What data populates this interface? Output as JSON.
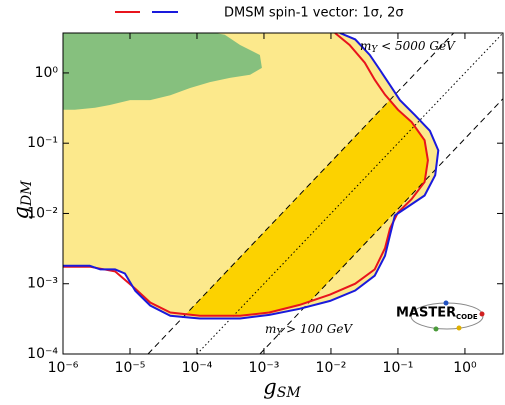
{
  "chart_data": {
    "type": "contour",
    "legend_label": "DMSM spin-1 vector: 1σ, 2σ",
    "x_label": {
      "base": "g",
      "sub": "SM"
    },
    "y_label": {
      "base": "g",
      "sub": "DM"
    },
    "log_x": true,
    "log_y": true,
    "xlim": [
      1e-06,
      3.7
    ],
    "ylim": [
      0.0001,
      3.7
    ],
    "xticks": [
      {
        "value": 1e-06,
        "label": "10⁻⁶"
      },
      {
        "value": 1e-05,
        "label": "10⁻⁵"
      },
      {
        "value": 0.0001,
        "label": "10⁻⁴"
      },
      {
        "value": 0.001,
        "label": "10⁻³"
      },
      {
        "value": 0.01,
        "label": "10⁻²"
      },
      {
        "value": 0.1,
        "label": "10⁻¹"
      },
      {
        "value": 1,
        "label": "10⁰"
      }
    ],
    "yticks": [
      {
        "value": 0.0001,
        "label": "10⁻⁴"
      },
      {
        "value": 0.001,
        "label": "10⁻³"
      },
      {
        "value": 0.01,
        "label": "10⁻²"
      },
      {
        "value": 0.1,
        "label": "10⁻¹"
      },
      {
        "value": 1,
        "label": "10⁰"
      }
    ],
    "series": [
      {
        "color": "#e8141c",
        "fill": "#fcd200",
        "x": [
          1e-06,
          2.5e-06,
          6e-06,
          1.2e-05,
          2e-05,
          4e-05,
          0.00011,
          0.00044,
          0.0012,
          0.0034,
          0.0097,
          0.023,
          0.045,
          0.064,
          0.076,
          0.1,
          0.16,
          0.25,
          0.28,
          0.25,
          0.16,
          0.1,
          0.064,
          0.045,
          0.032,
          0.019,
          0.0115
        ],
        "y": [
          0.00175,
          0.00175,
          0.0015,
          0.00085,
          0.00054,
          0.00039,
          0.00035,
          0.00035,
          0.00039,
          0.0005,
          0.0007,
          0.001,
          0.0016,
          0.0032,
          0.0061,
          0.0103,
          0.016,
          0.028,
          0.057,
          0.11,
          0.2,
          0.3,
          0.49,
          0.8,
          1.4,
          2.5,
          3.7
        ]
      },
      {
        "color": "#1a1adc",
        "fill": "#fce98c",
        "x": [
          1e-06,
          2.5e-06,
          3.6e-06,
          6e-06,
          8.4e-06,
          1.2e-05,
          2e-05,
          4e-05,
          7.9e-05,
          0.00011,
          0.00044,
          0.0012,
          0.0034,
          0.0097,
          0.023,
          0.045,
          0.064,
          0.076,
          0.09,
          0.15,
          0.25,
          0.36,
          0.4,
          0.3,
          0.18,
          0.107,
          0.076,
          0.054,
          0.038,
          0.023,
          0.0136
        ],
        "y": [
          0.0018,
          0.0018,
          0.0016,
          0.0016,
          0.0014,
          0.00079,
          0.00049,
          0.00035,
          0.00033,
          0.00032,
          0.00032,
          0.00036,
          0.00044,
          0.00057,
          0.0008,
          0.0013,
          0.0025,
          0.0049,
          0.0094,
          0.013,
          0.018,
          0.035,
          0.079,
          0.15,
          0.25,
          0.41,
          0.67,
          1.1,
          1.8,
          3.0,
          3.7
        ]
      }
    ],
    "regions": [
      {
        "color": "#86c07e",
        "x": [
          1e-06,
          1.5e-06,
          3e-06,
          5e-06,
          1e-05,
          2e-05,
          4e-05,
          7.9e-05,
          0.000156,
          0.00031,
          0.00062,
          0.00093,
          0.00087,
          0.00044,
          0.00026,
          0.000186
        ],
        "y": [
          0.3,
          0.3,
          0.32,
          0.35,
          0.41,
          0.41,
          0.48,
          0.61,
          0.74,
          0.85,
          0.94,
          1.18,
          1.8,
          2.5,
          3.5,
          3.7
        ]
      }
    ],
    "lines": [
      {
        "style": "dashed",
        "x": [
          1.86e-05,
          0.68
        ],
        "y": [
          0.0001,
          3.7
        ]
      },
      {
        "style": "dotted",
        "x": [
          0.0001,
          3.7
        ],
        "y": [
          0.0001,
          3.7
        ]
      },
      {
        "style": "dashed",
        "x": [
          0.00087,
          3.7
        ],
        "y": [
          0.0001,
          0.43
        ]
      }
    ],
    "annotations": [
      {
        "base": "m",
        "sub": "Y",
        "text": " < 5000 GeV"
      },
      {
        "base": "m",
        "sub": "Y",
        "text": " > 100 GeV"
      }
    ],
    "logo": {
      "text": "MASTER",
      "sub": "CODE"
    }
  }
}
